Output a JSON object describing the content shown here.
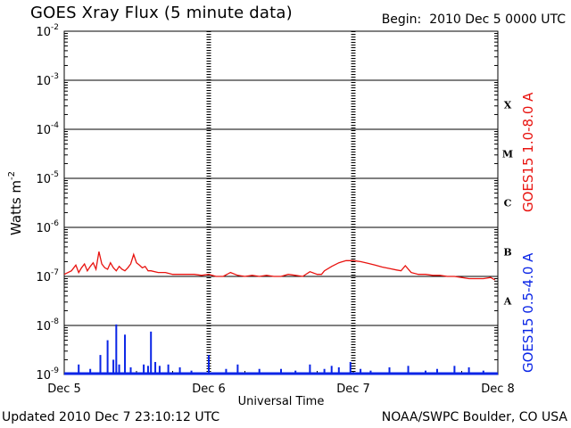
{
  "header": {
    "title": "GOES Xray Flux (5 minute data)",
    "begin_label": "Begin:",
    "begin_value": "2010 Dec 5 0000 UTC"
  },
  "footer": {
    "updated": "Updated 2010 Dec  7 23:10:12 UTC",
    "credit": "NOAA/SWPC Boulder, CO USA"
  },
  "colors": {
    "long": "#e8130f",
    "short": "#0a25e6",
    "grid": "#000000"
  },
  "chart_data": {
    "type": "line",
    "title": "GOES Xray Flux (5 minute data)",
    "xlabel": "Universal Time",
    "ylabel_base": "Watts m",
    "ylabel_exp": "-2",
    "yscale": "log",
    "ylim": [
      1e-09,
      0.01
    ],
    "xlim": [
      0,
      3
    ],
    "x_unit": "days since 2010 Dec 5 0000 UTC",
    "x_ticks": [
      {
        "x": 0,
        "label": "Dec 5"
      },
      {
        "x": 1,
        "label": "Dec 6"
      },
      {
        "x": 2,
        "label": "Dec 7"
      },
      {
        "x": 3,
        "label": "Dec 8"
      }
    ],
    "y_ticks": [
      {
        "exp": -9,
        "base": "10",
        "sup": "-9"
      },
      {
        "exp": -8,
        "base": "10",
        "sup": "-8"
      },
      {
        "exp": -7,
        "base": "10",
        "sup": "-7"
      },
      {
        "exp": -6,
        "base": "10",
        "sup": "-6"
      },
      {
        "exp": -5,
        "base": "10",
        "sup": "-5"
      },
      {
        "exp": -4,
        "base": "10",
        "sup": "-4"
      },
      {
        "exp": -3,
        "base": "10",
        "sup": "-3"
      },
      {
        "exp": -2,
        "base": "10",
        "sup": "-2"
      }
    ],
    "flare_classes": [
      {
        "label": "X",
        "exp": -3.5
      },
      {
        "label": "M",
        "exp": -4.5
      },
      {
        "label": "C",
        "exp": -5.5
      },
      {
        "label": "B",
        "exp": -6.5
      },
      {
        "label": "A",
        "exp": -7.5
      }
    ],
    "grid": true,
    "series": [
      {
        "name": "GOES15 1.0-8.0 A",
        "key": "long",
        "x": [
          0.0,
          0.05,
          0.08,
          0.1,
          0.12,
          0.14,
          0.16,
          0.18,
          0.2,
          0.22,
          0.24,
          0.26,
          0.28,
          0.3,
          0.32,
          0.34,
          0.36,
          0.38,
          0.4,
          0.42,
          0.44,
          0.46,
          0.48,
          0.5,
          0.52,
          0.54,
          0.56,
          0.58,
          0.6,
          0.65,
          0.7,
          0.75,
          0.8,
          0.85,
          0.9,
          0.95,
          1.0,
          1.05,
          1.1,
          1.15,
          1.2,
          1.25,
          1.3,
          1.35,
          1.4,
          1.45,
          1.5,
          1.55,
          1.6,
          1.65,
          1.7,
          1.75,
          1.78,
          1.8,
          1.85,
          1.9,
          1.95,
          2.0,
          2.05,
          2.1,
          2.15,
          2.2,
          2.25,
          2.3,
          2.33,
          2.36,
          2.4,
          2.45,
          2.5,
          2.55,
          2.6,
          2.65,
          2.7,
          2.75,
          2.8,
          2.85,
          2.9,
          2.95,
          2.98
        ],
        "values": [
          1.1e-07,
          1.3e-07,
          1.7e-07,
          1.2e-07,
          1.5e-07,
          1.8e-07,
          1.3e-07,
          1.6e-07,
          1.9e-07,
          1.4e-07,
          3.2e-07,
          1.8e-07,
          1.5e-07,
          1.4e-07,
          1.9e-07,
          1.5e-07,
          1.3e-07,
          1.6e-07,
          1.4e-07,
          1.3e-07,
          1.5e-07,
          1.8e-07,
          2.8e-07,
          1.9e-07,
          1.7e-07,
          1.5e-07,
          1.6e-07,
          1.3e-07,
          1.3e-07,
          1.2e-07,
          1.2e-07,
          1.1e-07,
          1.1e-07,
          1.1e-07,
          1.1e-07,
          1.05e-07,
          1.1e-07,
          1e-07,
          1e-07,
          1.2e-07,
          1.05e-07,
          1e-07,
          1.05e-07,
          1e-07,
          1.05e-07,
          1e-07,
          1e-07,
          1.1e-07,
          1.05e-07,
          1e-07,
          1.25e-07,
          1.1e-07,
          1.1e-07,
          1.3e-07,
          1.6e-07,
          1.9e-07,
          2.1e-07,
          2.1e-07,
          2e-07,
          1.85e-07,
          1.7e-07,
          1.55e-07,
          1.45e-07,
          1.35e-07,
          1.3e-07,
          1.65e-07,
          1.2e-07,
          1.1e-07,
          1.1e-07,
          1.05e-07,
          1.05e-07,
          1e-07,
          1e-07,
          9.5e-08,
          9e-08,
          9e-08,
          9e-08,
          9.5e-08,
          8.5e-08
        ]
      },
      {
        "name": "GOES15 0.5-4.0 A",
        "key": "short",
        "baseline": 1e-09,
        "spikes": [
          {
            "x": 0.1,
            "v": 1.6e-09
          },
          {
            "x": 0.18,
            "v": 1.3e-09
          },
          {
            "x": 0.25,
            "v": 2.5e-09
          },
          {
            "x": 0.3,
            "v": 5e-09
          },
          {
            "x": 0.34,
            "v": 2e-09
          },
          {
            "x": 0.36,
            "v": 1.05e-08
          },
          {
            "x": 0.38,
            "v": 1.6e-09
          },
          {
            "x": 0.42,
            "v": 6.5e-09
          },
          {
            "x": 0.46,
            "v": 1.4e-09
          },
          {
            "x": 0.55,
            "v": 1.6e-09
          },
          {
            "x": 0.58,
            "v": 1.5e-09
          },
          {
            "x": 0.6,
            "v": 7.5e-09
          },
          {
            "x": 0.63,
            "v": 1.8e-09
          },
          {
            "x": 0.66,
            "v": 1.5e-09
          },
          {
            "x": 0.72,
            "v": 1.6e-09
          },
          {
            "x": 0.8,
            "v": 1.4e-09
          },
          {
            "x": 0.88,
            "v": 1.2e-09
          },
          {
            "x": 1.0,
            "v": 2.5e-09
          },
          {
            "x": 1.12,
            "v": 1.3e-09
          },
          {
            "x": 1.2,
            "v": 1.6e-09
          },
          {
            "x": 1.35,
            "v": 1.3e-09
          },
          {
            "x": 1.5,
            "v": 1.3e-09
          },
          {
            "x": 1.6,
            "v": 1.2e-09
          },
          {
            "x": 1.7,
            "v": 1.6e-09
          },
          {
            "x": 1.8,
            "v": 1.3e-09
          },
          {
            "x": 1.85,
            "v": 1.5e-09
          },
          {
            "x": 1.9,
            "v": 1.4e-09
          },
          {
            "x": 1.98,
            "v": 1.8e-09
          },
          {
            "x": 2.05,
            "v": 1.3e-09
          },
          {
            "x": 2.12,
            "v": 1.2e-09
          },
          {
            "x": 2.25,
            "v": 1.4e-09
          },
          {
            "x": 2.38,
            "v": 1.5e-09
          },
          {
            "x": 2.5,
            "v": 1.2e-09
          },
          {
            "x": 2.58,
            "v": 1.3e-09
          },
          {
            "x": 2.7,
            "v": 1.5e-09
          },
          {
            "x": 2.8,
            "v": 1.4e-09
          },
          {
            "x": 2.9,
            "v": 1.2e-09
          }
        ]
      }
    ]
  }
}
